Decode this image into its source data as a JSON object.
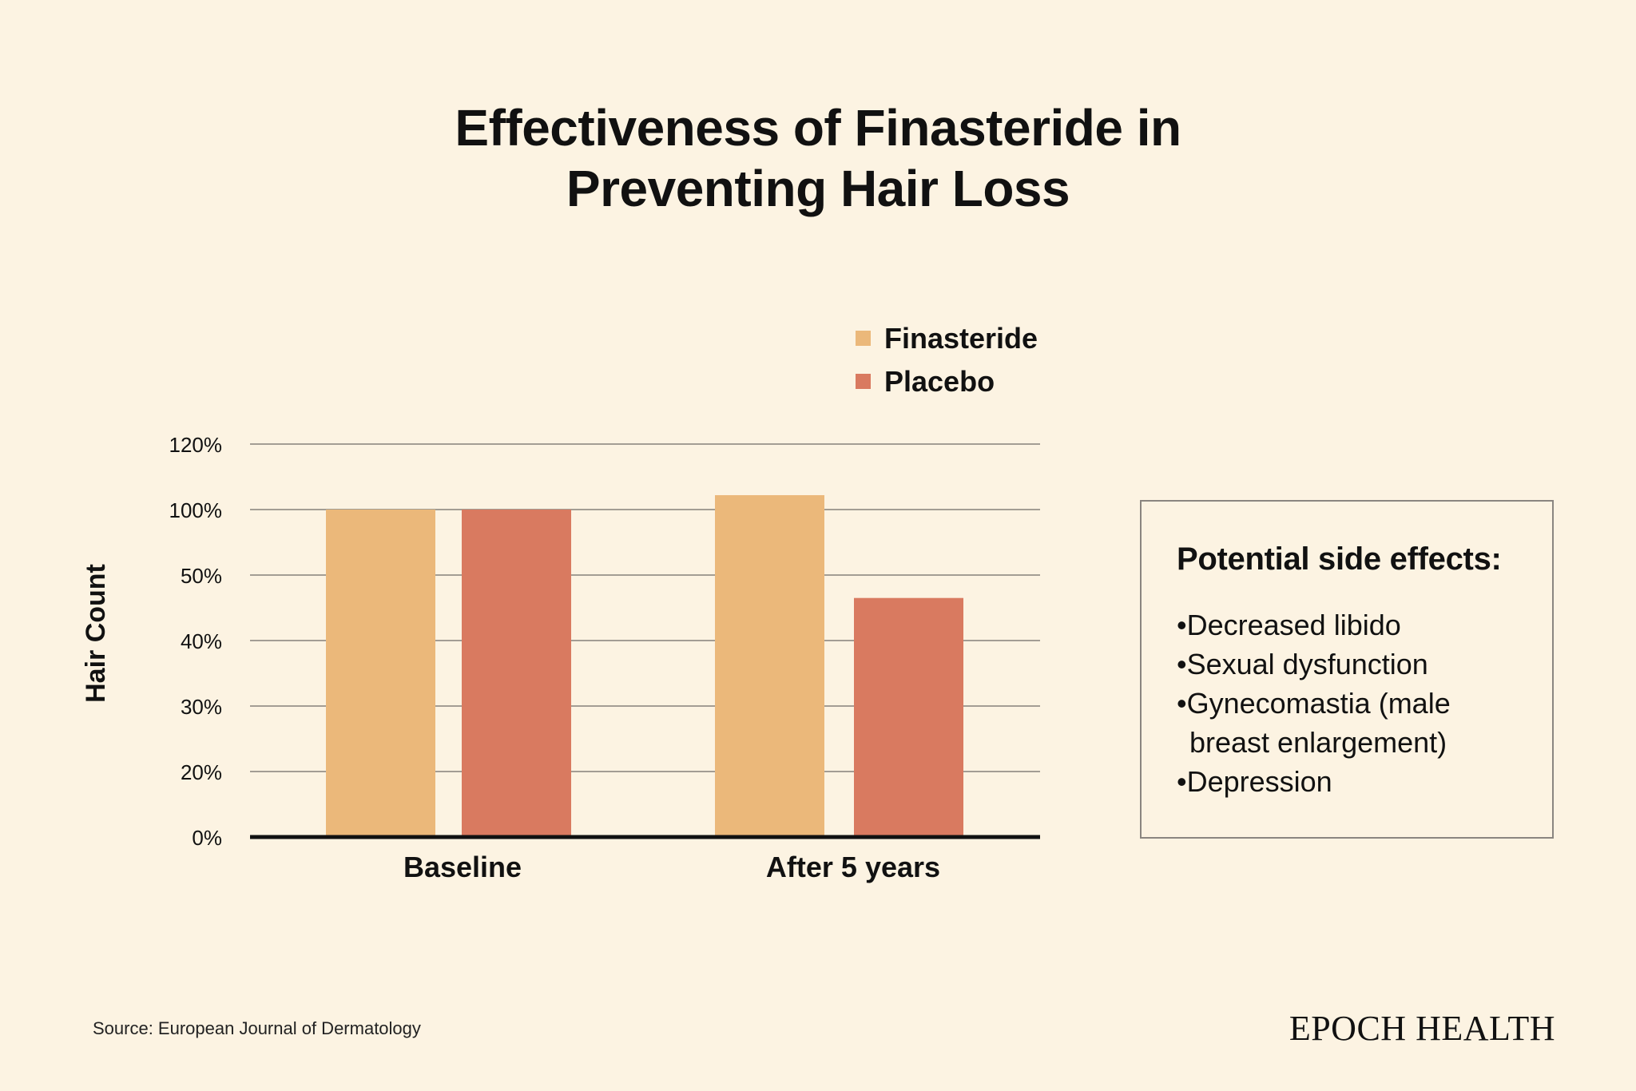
{
  "chart_data": {
    "type": "bar",
    "title": "Effectiveness of Finasteride in Preventing Hair Loss",
    "title_lines": [
      "Effectiveness of Finasteride in",
      "Preventing Hair Loss"
    ],
    "ylabel": "Hair Count",
    "xlabel": "",
    "categories": [
      "Baseline",
      "After 5 years"
    ],
    "yticks": [
      "0%",
      "20%",
      "30%",
      "40%",
      "50%",
      "100%",
      "120%"
    ],
    "ytick_levels": [
      0,
      1,
      2,
      3,
      4,
      5,
      6
    ],
    "series": [
      {
        "name": "Finasteride",
        "color": "#ebb87a",
        "levels": [
          5,
          5.22
        ]
      },
      {
        "name": "Placebo",
        "color": "#d97a60",
        "levels": [
          5,
          3.65
        ]
      }
    ],
    "legend_position": "top-right",
    "grid": true
  },
  "sidebar": {
    "heading": "Potential side effects:",
    "items": [
      "Decreased libido",
      "Sexual dysfunction",
      "Gynecomastia (male breast enlargement)",
      "Depression"
    ]
  },
  "source": "Source: European Journal of Dermatology",
  "brand": "EPOCH HEALTH"
}
